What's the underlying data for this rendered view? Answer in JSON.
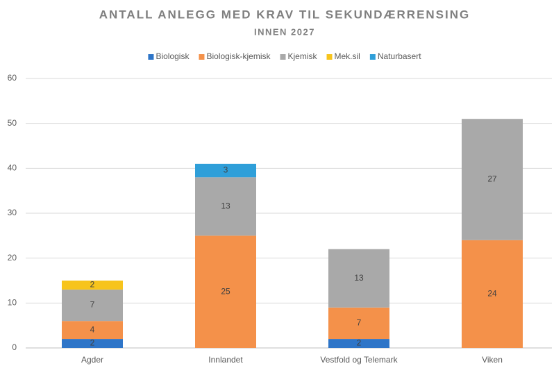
{
  "chart_data": {
    "type": "stacked_bar",
    "title": "ANTALL ANLEGG MED KRAV TIL SEKUNDÆRRENSING",
    "subtitle": "INNEN 2027",
    "categories": [
      "Agder",
      "Innlandet",
      "Vestfold og Telemark",
      "Viken"
    ],
    "series": [
      {
        "name": "Biologisk",
        "color": "#2e75c8",
        "values": [
          2,
          null,
          2,
          null
        ]
      },
      {
        "name": "Biologisk-kjemisk",
        "color": "#f4914a",
        "values": [
          4,
          25,
          7,
          24
        ]
      },
      {
        "name": "Kjemisk",
        "color": "#a9a9a9",
        "values": [
          7,
          13,
          13,
          27
        ]
      },
      {
        "name": "Mek.sil",
        "color": "#f7c41c",
        "values": [
          2,
          null,
          null,
          null
        ]
      },
      {
        "name": "Naturbasert",
        "color": "#2f9fd9",
        "values": [
          null,
          3,
          null,
          null
        ]
      }
    ],
    "ylim": [
      0,
      60
    ],
    "yticks": [
      0,
      10,
      20,
      30,
      40,
      50,
      60
    ],
    "grid": true,
    "legend": "top"
  }
}
